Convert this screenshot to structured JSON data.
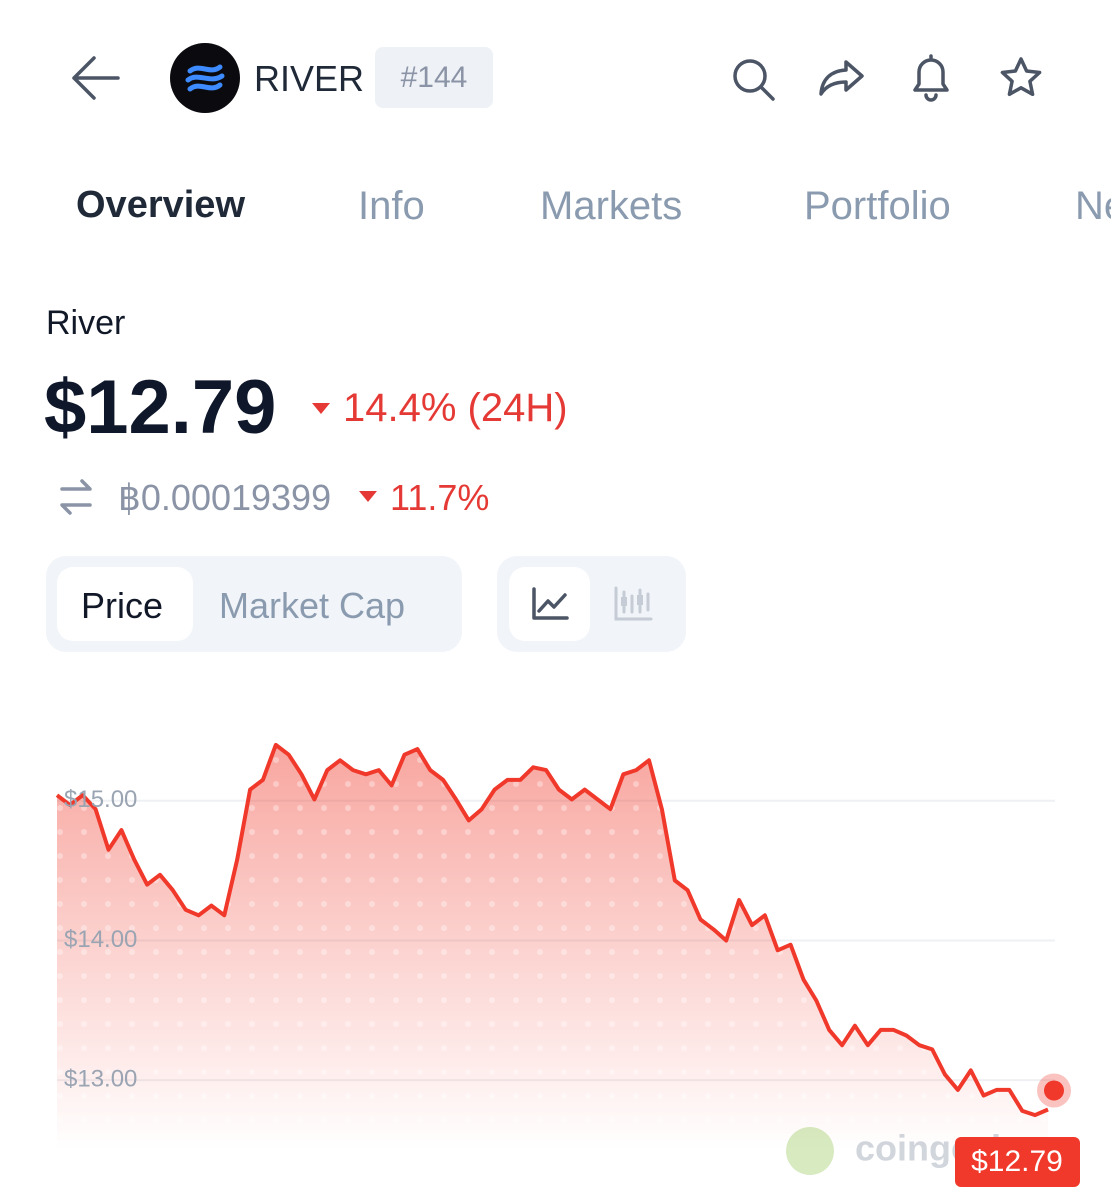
{
  "header": {
    "symbol": "RIVER",
    "rank": "#144"
  },
  "tabs": [
    "Overview",
    "Info",
    "Markets",
    "Portfolio",
    "News"
  ],
  "coin": {
    "name": "River",
    "price": "$12.79",
    "change_24h": "14.4% (24H)",
    "btc_price": "฿0.00019399",
    "btc_change": "11.7%"
  },
  "toggle": [
    "Price",
    "Market Cap"
  ],
  "watermark": "coingecko",
  "chart_data": {
    "type": "line",
    "color": "#f0392b",
    "values": [
      15.04,
      14.97,
      15.04,
      14.94,
      14.65,
      14.79,
      14.58,
      14.4,
      14.47,
      14.36,
      14.22,
      14.18,
      14.25,
      14.18,
      14.58,
      15.08,
      15.15,
      15.4,
      15.33,
      15.19,
      15.01,
      15.22,
      15.29,
      15.22,
      15.19,
      15.22,
      15.11,
      15.33,
      15.37,
      15.22,
      15.15,
      15.01,
      14.86,
      14.94,
      15.08,
      15.15,
      15.15,
      15.24,
      15.22,
      15.08,
      15.01,
      15.08,
      15.01,
      14.94,
      15.19,
      15.22,
      15.29,
      14.94,
      14.43,
      14.36,
      14.15,
      14.08,
      14.0,
      14.29,
      14.11,
      14.18,
      13.93,
      13.97,
      13.72,
      13.57,
      13.36,
      13.25,
      13.39,
      13.25,
      13.36,
      13.36,
      13.32,
      13.25,
      13.22,
      13.04,
      12.93,
      13.07,
      12.89,
      12.93,
      12.93,
      12.78,
      12.75,
      12.79
    ],
    "ylim": [
      12.5,
      15.6
    ],
    "yticks": [
      {
        "value": 13,
        "label": "$13.00"
      },
      {
        "value": 14,
        "label": "$14.00"
      },
      {
        "value": 15,
        "label": "$15.00"
      }
    ],
    "grid": true,
    "price_tag": "$12.79"
  }
}
